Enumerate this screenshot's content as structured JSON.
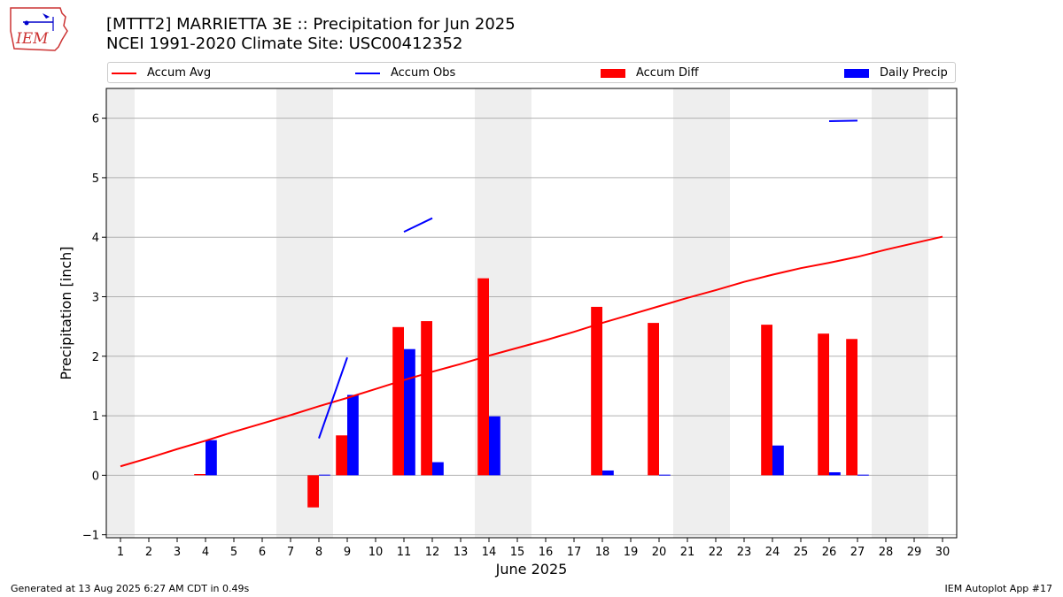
{
  "title_line1": "[MTTT2] MARRIETTA 3E :: Precipitation for Jun 2025",
  "title_line2": "NCEI 1991-2020 Climate Site: USC00412352",
  "logo_text": "IEM",
  "footer_left": "Generated at 13 Aug 2025 6:27 AM CDT in 0.49s",
  "footer_right": "IEM Autoplot App #17",
  "colors": {
    "accum_avg": "#ff0000",
    "accum_obs": "#0000ff",
    "accum_diff": "#ff0000",
    "daily_precip": "#0000ff",
    "weekend_shade": "#eeeeee",
    "grid": "#b0b0b0"
  },
  "legend": [
    {
      "label": "Accum Avg",
      "kind": "line",
      "color": "#ff0000"
    },
    {
      "label": "Accum Obs",
      "kind": "line",
      "color": "#0000ff"
    },
    {
      "label": "Accum Diff",
      "kind": "patch",
      "color": "#ff0000"
    },
    {
      "label": "Daily Precip",
      "kind": "patch",
      "color": "#0000ff"
    }
  ],
  "chart_data": {
    "type": "bar",
    "xlabel": "June 2025",
    "ylabel": "Precipitation [inch]",
    "xlim": [
      0.5,
      30.5
    ],
    "ylim": [
      -1.05,
      6.5
    ],
    "yticks": [
      -1,
      0,
      1,
      2,
      3,
      4,
      5,
      6
    ],
    "xticks": [
      1,
      2,
      3,
      4,
      5,
      6,
      7,
      8,
      9,
      10,
      11,
      12,
      13,
      14,
      15,
      16,
      17,
      18,
      19,
      20,
      21,
      22,
      23,
      24,
      25,
      26,
      27,
      28,
      29,
      30
    ],
    "grid": "horizontal",
    "legend_position": "top",
    "weekends": [
      [
        0.5,
        1.5
      ],
      [
        6.5,
        8.5
      ],
      [
        13.5,
        15.5
      ],
      [
        20.5,
        22.5
      ],
      [
        27.5,
        29.5
      ]
    ],
    "accum_avg": {
      "name": "Accum Avg",
      "x": [
        1,
        2,
        3,
        4,
        5,
        6,
        7,
        8,
        9,
        10,
        11,
        12,
        13,
        14,
        15,
        16,
        17,
        18,
        19,
        20,
        21,
        22,
        23,
        24,
        25,
        26,
        27,
        28,
        29,
        30
      ],
      "y": [
        0.15,
        0.29,
        0.44,
        0.58,
        0.73,
        0.87,
        1.01,
        1.16,
        1.3,
        1.45,
        1.6,
        1.74,
        1.87,
        2.01,
        2.14,
        2.27,
        2.41,
        2.56,
        2.7,
        2.84,
        2.98,
        3.11,
        3.25,
        3.37,
        3.48,
        3.57,
        3.67,
        3.79,
        3.9,
        4.01
      ]
    },
    "accum_obs": {
      "name": "Accum Obs",
      "segments": [
        {
          "x": [
            8,
            9
          ],
          "y": [
            0.62,
            1.98
          ]
        },
        {
          "x": [
            11,
            12
          ],
          "y": [
            4.09,
            4.32
          ]
        },
        {
          "x": [
            26,
            27
          ],
          "y": [
            5.95,
            5.96
          ]
        }
      ]
    },
    "accum_diff": {
      "name": "Accum Diff",
      "x": [
        4,
        8,
        9,
        11,
        12,
        14,
        18,
        20,
        24,
        26,
        27
      ],
      "y": [
        0.02,
        -0.54,
        0.67,
        2.49,
        2.59,
        3.31,
        2.83,
        2.56,
        2.53,
        2.38,
        2.29
      ]
    },
    "daily_precip": {
      "name": "Daily Precip",
      "x": [
        4,
        8,
        9,
        11,
        12,
        14,
        18,
        20,
        24,
        26,
        27
      ],
      "y": [
        0.59,
        0.01,
        1.35,
        2.12,
        0.22,
        0.99,
        0.08,
        0.01,
        0.5,
        0.05,
        0.01
      ]
    }
  }
}
